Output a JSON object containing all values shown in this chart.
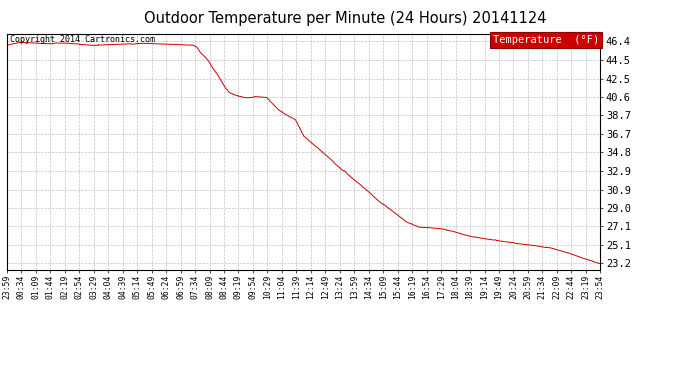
{
  "title": "Outdoor Temperature per Minute (24 Hours) 20141124",
  "copyright_text": "Copyright 2014 Cartronics.com",
  "legend_label": "Temperature  (°F)",
  "legend_bg": "#cc0000",
  "legend_text_color": "#ffffff",
  "line_color": "#cc0000",
  "background_color": "#ffffff",
  "grid_color": "#bbbbbb",
  "yticks": [
    23.2,
    25.1,
    27.1,
    29.0,
    30.9,
    32.9,
    34.8,
    36.7,
    38.7,
    40.6,
    42.5,
    44.5,
    46.4
  ],
  "ymin": 22.5,
  "ymax": 47.2,
  "num_points": 1440,
  "key_times": [
    0,
    30,
    90,
    150,
    210,
    270,
    330,
    400,
    450,
    460,
    470,
    480,
    490,
    500,
    510,
    520,
    530,
    540,
    560,
    580,
    600,
    630,
    660,
    700,
    720,
    760,
    800,
    840,
    870,
    900,
    940,
    970,
    1000,
    1050,
    1080,
    1110,
    1140,
    1170,
    1200,
    1240,
    1280,
    1320,
    1360,
    1400,
    1439
  ],
  "key_temps": [
    46.0,
    46.3,
    46.2,
    46.2,
    46.0,
    46.1,
    46.2,
    46.1,
    46.0,
    45.8,
    45.2,
    44.8,
    44.3,
    43.5,
    43.0,
    42.2,
    41.5,
    41.0,
    40.7,
    40.5,
    40.6,
    40.5,
    39.2,
    38.2,
    36.5,
    35.0,
    33.5,
    32.0,
    31.0,
    29.8,
    28.5,
    27.5,
    27.0,
    26.8,
    26.6,
    26.2,
    25.9,
    25.7,
    25.5,
    25.3,
    25.1,
    24.8,
    24.3,
    23.7,
    23.2
  ],
  "x_tick_labels": [
    "23:59",
    "00:34",
    "01:09",
    "01:44",
    "02:19",
    "02:54",
    "03:29",
    "04:04",
    "04:39",
    "05:14",
    "05:49",
    "06:24",
    "06:59",
    "07:34",
    "08:09",
    "08:44",
    "09:19",
    "09:54",
    "10:29",
    "11:04",
    "11:39",
    "12:14",
    "12:49",
    "13:24",
    "13:59",
    "14:34",
    "15:09",
    "15:44",
    "16:19",
    "16:54",
    "17:29",
    "18:04",
    "18:39",
    "19:14",
    "19:49",
    "20:24",
    "20:59",
    "21:34",
    "22:09",
    "22:44",
    "23:19",
    "23:54"
  ]
}
